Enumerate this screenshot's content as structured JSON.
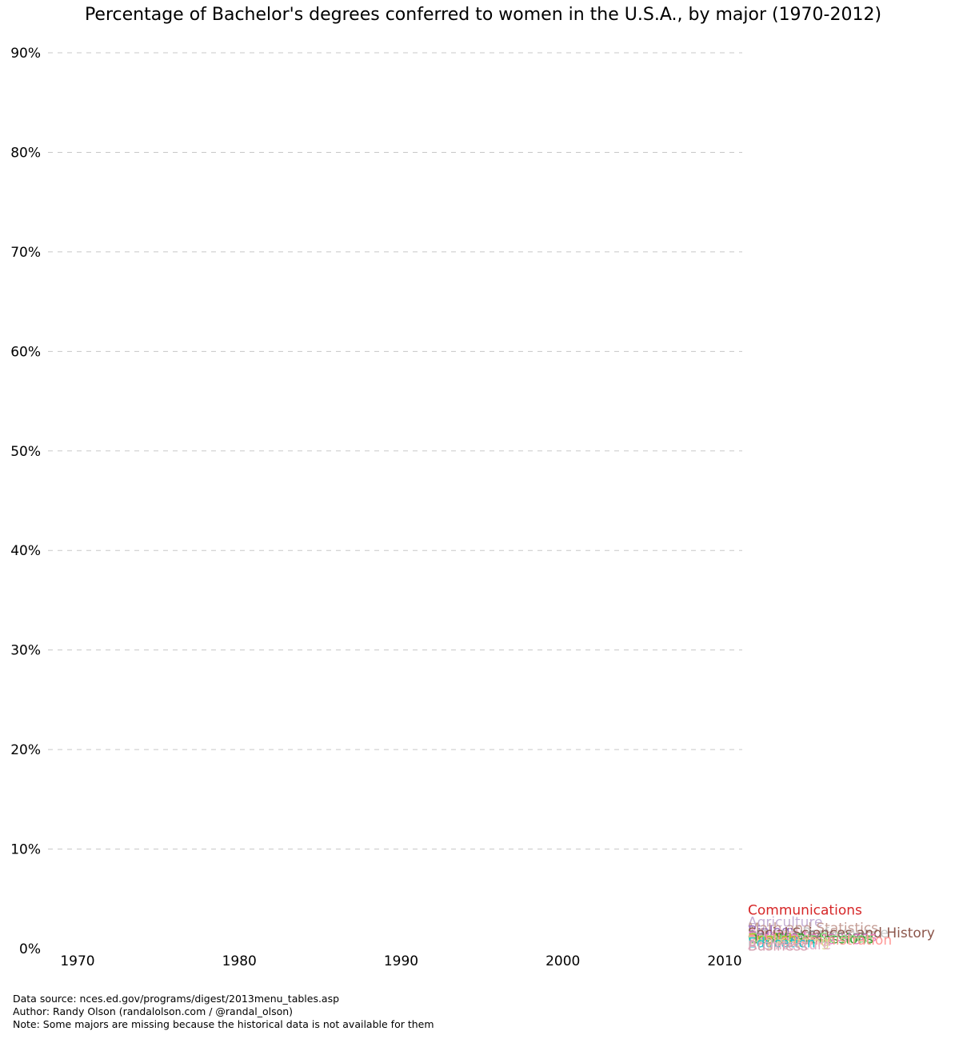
{
  "chart_data": {
    "type": "line",
    "title": "Percentage of Bachelor's degrees conferred to women in the U.S.A., by major (1970-2012)",
    "xlabel": "",
    "ylabel": "",
    "xlim": [
      1968,
      2011
    ],
    "ylim": [
      0,
      90
    ],
    "x_ticks": [
      1970,
      1980,
      1990,
      2000,
      2010
    ],
    "y_ticks": [
      0,
      10,
      20,
      30,
      40,
      50,
      60,
      70,
      80,
      90
    ],
    "y_tick_labels": [
      "0%",
      "10%",
      "20%",
      "30%",
      "40%",
      "50%",
      "60%",
      "70%",
      "80%",
      "90%"
    ],
    "grid": "horizontal dashed",
    "legend": "none",
    "series_labels": [
      {
        "name": "Communications",
        "y": 3.9,
        "color": "#d62728"
      },
      {
        "name": "Agriculture",
        "y": 2.7,
        "color": "#c5b0d5"
      },
      {
        "name": "Math and Statistics",
        "y": 2.1,
        "color": "#c49c94"
      },
      {
        "name": "Biology",
        "y": 1.8,
        "color": "#9467bd"
      },
      {
        "name": "Art and Performance",
        "y": 1.6,
        "color": "#c7c7c7"
      },
      {
        "name": "Psychology",
        "y": 1.5,
        "color": "#f7b6d2"
      },
      {
        "name": "Social Sciences and History",
        "y": 1.6,
        "color": "#8c564b"
      },
      {
        "name": "Physical Sciences",
        "y": 1.3,
        "color": "#7f7f7f"
      },
      {
        "name": "Foreign Languages",
        "y": 1.2,
        "color": "#e377c2"
      },
      {
        "name": "Health Professions",
        "y": 1.0,
        "color": "#2ca02c"
      },
      {
        "name": "Computer Science",
        "y": 1.1,
        "color": "#98df8a"
      },
      {
        "name": "English",
        "y": 1.0,
        "color": "#bcbd22"
      },
      {
        "name": "Public Administration",
        "y": 0.9,
        "color": "#ff9896"
      },
      {
        "name": "Engineering",
        "y": 0.7,
        "color": "#dbdb8d"
      },
      {
        "name": "Education",
        "y": 0.6,
        "color": "#17becf"
      },
      {
        "name": "Architecture",
        "y": 0.4,
        "color": "#e5b0c8"
      },
      {
        "name": "Business",
        "y": 0.3,
        "color": "#d4a0b0"
      }
    ]
  },
  "footer": {
    "source": "Data source: nces.ed.gov/programs/digest/2013menu_tables.asp",
    "author": "Author: Randy Olson (randalolson.com / @randal_olson)",
    "note": "Note: Some majors are missing because the historical data is not available for them"
  }
}
